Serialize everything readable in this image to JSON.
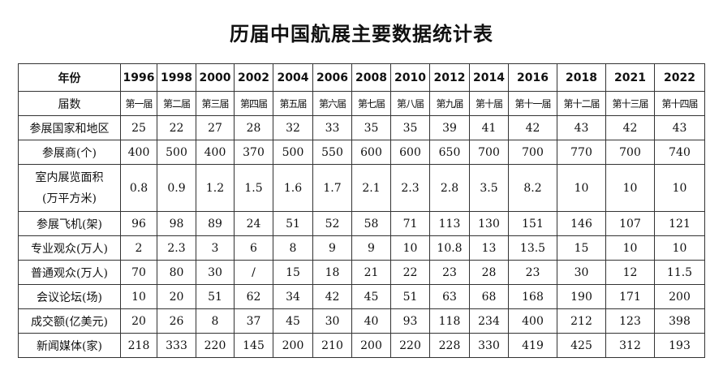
{
  "title": "历届中国航展主要数据统计表",
  "table": {
    "header": {
      "label": "年份",
      "cells": [
        "1996",
        "1998",
        "2000",
        "2002",
        "2004",
        "2006",
        "2008",
        "2010",
        "2012",
        "2014",
        "2016",
        "2018",
        "2021",
        "2022"
      ]
    },
    "rows": [
      {
        "label": "届数",
        "cells": [
          "第一届",
          "第二届",
          "第三届",
          "第四届",
          "第五届",
          "第六届",
          "第七届",
          "第八届",
          "第九届",
          "第十届",
          "第十一届",
          "第十二届",
          "第十三届",
          "第十四届"
        ]
      },
      {
        "label": "参展国家和地区",
        "cells": [
          "25",
          "22",
          "27",
          "28",
          "32",
          "33",
          "35",
          "35",
          "39",
          "41",
          "42",
          "43",
          "42",
          "43"
        ]
      },
      {
        "label": "参展商(个)",
        "cells": [
          "400",
          "500",
          "400",
          "370",
          "500",
          "550",
          "600",
          "600",
          "650",
          "700",
          "700",
          "770",
          "700",
          "740"
        ]
      },
      {
        "label": "室内展览面积",
        "sublabel": "(万平方米)",
        "cells": [
          "0.8",
          "0.9",
          "1.2",
          "1.5",
          "1.6",
          "1.7",
          "2.1",
          "2.3",
          "2.8",
          "3.5",
          "8.2",
          "10",
          "10",
          "10"
        ]
      },
      {
        "label": "参展飞机(架)",
        "cells": [
          "96",
          "98",
          "89",
          "24",
          "51",
          "52",
          "58",
          "71",
          "113",
          "130",
          "151",
          "146",
          "107",
          "121"
        ]
      },
      {
        "label": "专业观众(万人)",
        "cells": [
          "2",
          "2.3",
          "3",
          "6",
          "8",
          "9",
          "9",
          "10",
          "10.8",
          "13",
          "13.5",
          "15",
          "10",
          "10"
        ]
      },
      {
        "label": "普通观众(万人)",
        "cells": [
          "70",
          "80",
          "30",
          "/",
          "15",
          "18",
          "21",
          "22",
          "23",
          "28",
          "23",
          "30",
          "12",
          "11.5"
        ]
      },
      {
        "label": "会议论坛(场)",
        "cells": [
          "10",
          "20",
          "51",
          "62",
          "34",
          "42",
          "45",
          "51",
          "63",
          "68",
          "168",
          "190",
          "171",
          "200"
        ]
      },
      {
        "label": "成交额(亿美元)",
        "cells": [
          "20",
          "26",
          "8",
          "37",
          "45",
          "30",
          "40",
          "93",
          "118",
          "234",
          "400",
          "212",
          "123",
          "398"
        ]
      },
      {
        "label": "新闻媒体(家)",
        "cells": [
          "218",
          "333",
          "220",
          "145",
          "200",
          "210",
          "200",
          "220",
          "228",
          "330",
          "419",
          "425",
          "312",
          "193"
        ]
      }
    ]
  }
}
